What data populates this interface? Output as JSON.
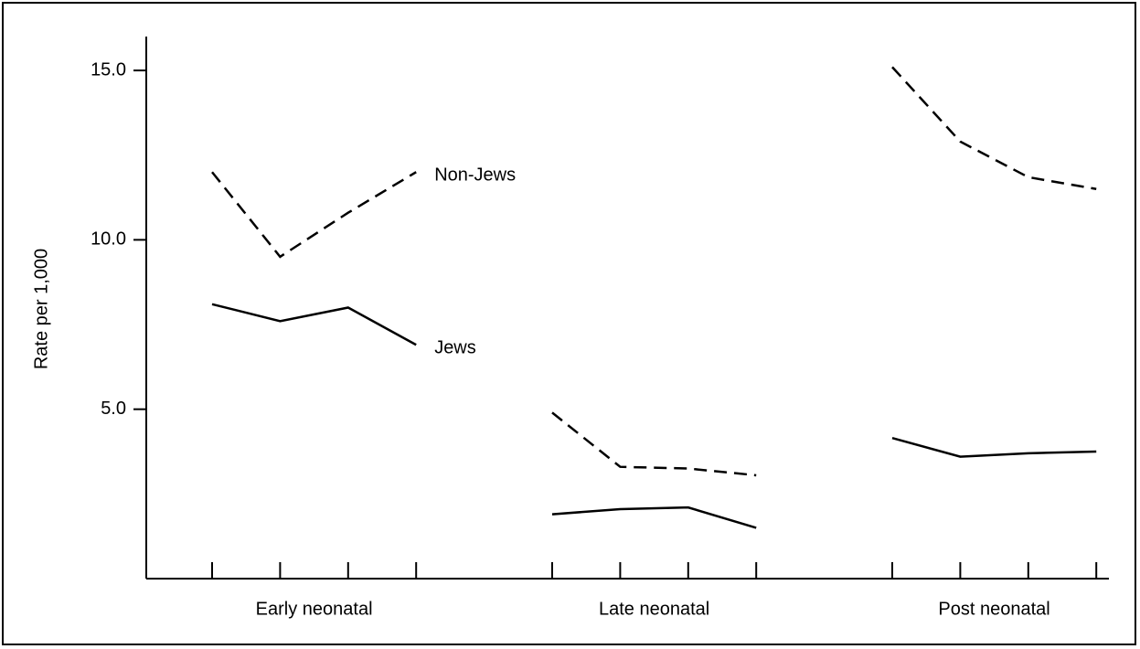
{
  "chart_data": {
    "type": "line",
    "y_label": "Rate per 1,000",
    "groups": [
      "Early neonatal",
      "Late neonatal",
      "Post neonatal"
    ],
    "categories": [
      null,
      null,
      null,
      null,
      null,
      null,
      null,
      null,
      null,
      null,
      null,
      null
    ],
    "series": [
      {
        "name": "Non-Jews",
        "color": "#000000",
        "dash": true,
        "values": [
          12.0,
          9.5,
          10.8,
          12.0,
          4.9,
          3.3,
          3.25,
          3.05,
          15.1,
          12.9,
          11.85,
          11.5
        ]
      },
      {
        "name": "Jews",
        "color": "#000000",
        "dash": false,
        "values": [
          8.1,
          7.6,
          8.0,
          6.9,
          1.9,
          2.05,
          2.1,
          1.5,
          4.15,
          3.6,
          3.7,
          3.75
        ]
      }
    ],
    "ylim": [
      0,
      16
    ],
    "yticks": [
      {
        "value": 5,
        "label": "5.0"
      },
      {
        "value": 10,
        "label": "10.0"
      },
      {
        "value": 15,
        "label": "15.0"
      }
    ],
    "grid": false
  }
}
